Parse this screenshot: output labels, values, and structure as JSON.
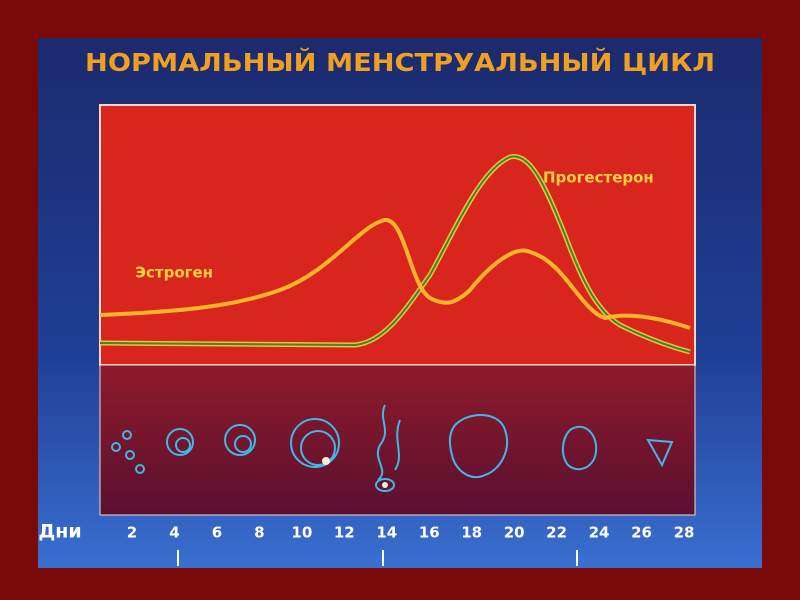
{
  "title": "НОРМАЛЬНЫЙ МЕНСТРУАЛЬНЫЙ ЦИКЛ",
  "curve_labels": {
    "estrogen": "Эстроген",
    "progesterone": "Прогестерон"
  },
  "axis": {
    "label": "Дни",
    "days": [
      2,
      4,
      6,
      8,
      10,
      12,
      14,
      16,
      18,
      20,
      22,
      24,
      26,
      28
    ]
  }
}
